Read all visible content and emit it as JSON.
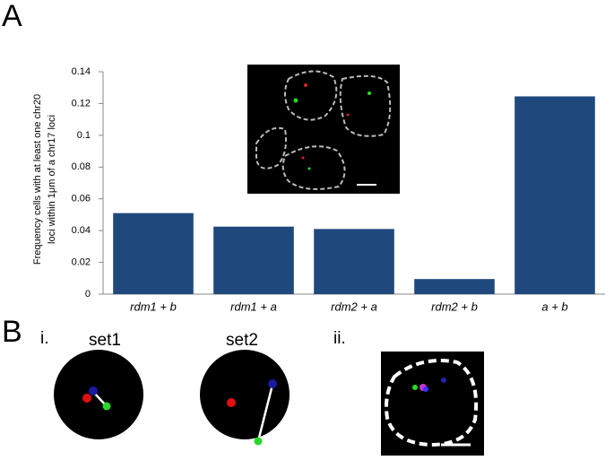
{
  "chart_data": {
    "type": "bar",
    "ylabel": [
      "Frequency cells with at least one  chr20",
      "loci within 1μm of a chr17 loci"
    ],
    "categories": [
      "rdm1 + b",
      "rdm1 + a",
      "rdm2 + a",
      "rdm2 + b",
      "a + b"
    ],
    "values": [
      0.051,
      0.0425,
      0.041,
      0.0095,
      0.1245
    ],
    "color": "#1f497d",
    "ylim": [
      0,
      0.14
    ],
    "yticks": [
      0,
      0.02,
      0.04,
      0.06,
      0.08,
      0.1,
      0.12,
      0.14
    ],
    "grid": false
  },
  "panels": {
    "a_label": "A",
    "b_label": "B",
    "i_label": "i.",
    "ii_label": "ii.",
    "set1": "set1",
    "set2": "set2"
  }
}
